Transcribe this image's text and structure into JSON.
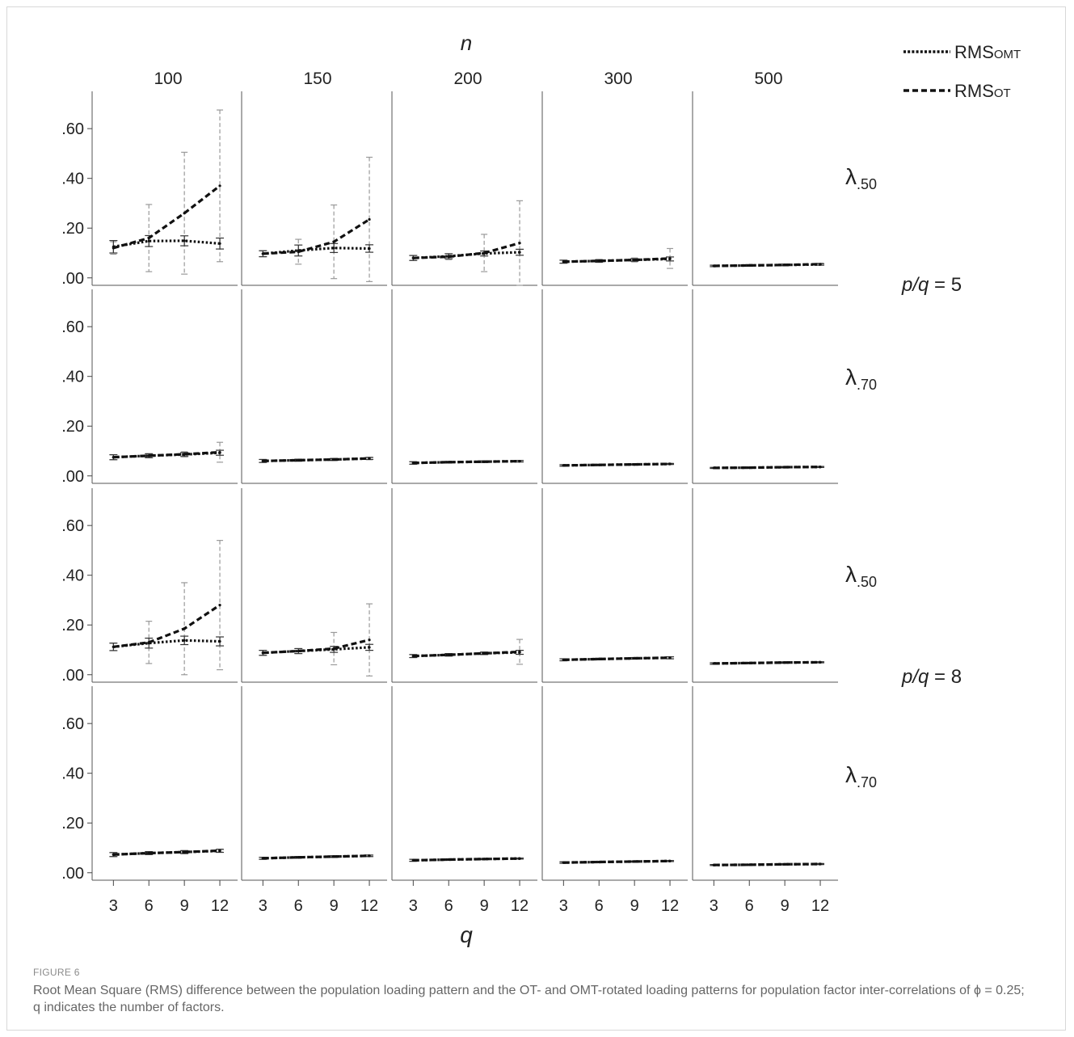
{
  "chart_data": {
    "type": "line",
    "panel_grid": "facet",
    "xlabel": "q",
    "column_header": "n",
    "columns": [
      "100",
      "150",
      "200",
      "300",
      "500"
    ],
    "row_labels": [
      "λ.50",
      "λ.70",
      "λ.50",
      "λ.70"
    ],
    "row_group_labels": [
      "p/q = 5",
      "p/q = 8"
    ],
    "x": [
      3,
      6,
      9,
      12
    ],
    "x_tick_labels": [
      "3",
      "6",
      "9",
      "12"
    ],
    "y_tick_values": [
      0,
      0.2,
      0.4,
      0.6
    ],
    "y_tick_labels": [
      ".00",
      ".20",
      ".40",
      ".60"
    ],
    "ylim": [
      -0.03,
      0.75
    ],
    "legend_position": "top-right",
    "legend": [
      {
        "name": "RMSOMT",
        "style": "dotted"
      },
      {
        "name": "RMSOT",
        "style": "dashed"
      }
    ],
    "panels": [
      [
        {
          "omt": [
            0.125,
            0.148,
            0.149,
            0.138
          ],
          "omt_err": [
            0.025,
            0.022,
            0.02,
            0.022
          ],
          "ot": [
            0.12,
            0.16,
            0.26,
            0.37
          ],
          "ot_err": [
            0.025,
            0.135,
            0.245,
            0.305
          ]
        },
        {
          "omt": [
            0.097,
            0.11,
            0.12,
            0.118
          ],
          "omt_err": [
            0.012,
            0.022,
            0.018,
            0.015
          ],
          "ot": [
            0.097,
            0.105,
            0.145,
            0.235
          ],
          "ot_err": [
            0.012,
            0.05,
            0.148,
            0.25
          ]
        },
        {
          "omt": [
            0.08,
            0.087,
            0.098,
            0.103
          ],
          "omt_err": [
            0.01,
            0.01,
            0.01,
            0.012
          ],
          "ot": [
            0.08,
            0.085,
            0.1,
            0.14
          ],
          "ot_err": [
            0.01,
            0.012,
            0.075,
            0.17
          ]
        },
        {
          "omt": [
            0.065,
            0.068,
            0.072,
            0.076
          ],
          "omt_err": [
            0.006,
            0.005,
            0.005,
            0.008
          ],
          "ot": [
            0.065,
            0.068,
            0.072,
            0.078
          ],
          "ot_err": [
            0.006,
            0.006,
            0.008,
            0.04
          ]
        },
        {
          "omt": [
            0.048,
            0.05,
            0.052,
            0.054
          ],
          "omt_err": [
            0.003,
            0.003,
            0.003,
            0.003
          ],
          "ot": [
            0.048,
            0.05,
            0.052,
            0.055
          ],
          "ot_err": [
            0.003,
            0.003,
            0.003,
            0.004
          ]
        }
      ],
      [
        {
          "omt": [
            0.075,
            0.081,
            0.086,
            0.093
          ],
          "omt_err": [
            0.01,
            0.008,
            0.008,
            0.01
          ],
          "ot": [
            0.075,
            0.081,
            0.087,
            0.095
          ],
          "ot_err": [
            0.01,
            0.008,
            0.01,
            0.04
          ]
        },
        {
          "omt": [
            0.06,
            0.063,
            0.066,
            0.07
          ],
          "omt_err": [
            0.006,
            0.004,
            0.004,
            0.004
          ],
          "ot": [
            0.06,
            0.063,
            0.066,
            0.07
          ],
          "ot_err": [
            0.006,
            0.004,
            0.004,
            0.005
          ]
        },
        {
          "omt": [
            0.052,
            0.055,
            0.057,
            0.059
          ],
          "omt_err": [
            0.005,
            0.003,
            0.003,
            0.003
          ],
          "ot": [
            0.052,
            0.055,
            0.057,
            0.059
          ],
          "ot_err": [
            0.005,
            0.003,
            0.003,
            0.003
          ]
        },
        {
          "omt": [
            0.042,
            0.044,
            0.046,
            0.048
          ],
          "omt_err": [
            0.003,
            0.002,
            0.002,
            0.002
          ],
          "ot": [
            0.042,
            0.044,
            0.046,
            0.048
          ],
          "ot_err": [
            0.003,
            0.002,
            0.002,
            0.002
          ]
        },
        {
          "omt": [
            0.032,
            0.033,
            0.035,
            0.036
          ],
          "omt_err": [
            0.002,
            0.002,
            0.002,
            0.002
          ],
          "ot": [
            0.032,
            0.033,
            0.035,
            0.036
          ],
          "ot_err": [
            0.002,
            0.002,
            0.002,
            0.002
          ]
        }
      ],
      [
        {
          "omt": [
            0.112,
            0.127,
            0.138,
            0.134
          ],
          "omt_err": [
            0.015,
            0.02,
            0.017,
            0.018
          ],
          "ot": [
            0.112,
            0.13,
            0.185,
            0.28
          ],
          "ot_err": [
            0.015,
            0.085,
            0.185,
            0.26
          ]
        },
        {
          "omt": [
            0.088,
            0.095,
            0.102,
            0.11
          ],
          "omt_err": [
            0.01,
            0.01,
            0.012,
            0.012
          ],
          "ot": [
            0.088,
            0.095,
            0.105,
            0.14
          ],
          "ot_err": [
            0.01,
            0.01,
            0.065,
            0.145
          ]
        },
        {
          "omt": [
            0.075,
            0.08,
            0.086,
            0.09
          ],
          "omt_err": [
            0.006,
            0.005,
            0.005,
            0.008
          ],
          "ot": [
            0.075,
            0.08,
            0.086,
            0.092
          ],
          "ot_err": [
            0.006,
            0.005,
            0.005,
            0.05
          ]
        },
        {
          "omt": [
            0.06,
            0.063,
            0.066,
            0.068
          ],
          "omt_err": [
            0.004,
            0.003,
            0.003,
            0.004
          ],
          "ot": [
            0.06,
            0.063,
            0.066,
            0.068
          ],
          "ot_err": [
            0.004,
            0.003,
            0.003,
            0.004
          ]
        },
        {
          "omt": [
            0.045,
            0.047,
            0.049,
            0.05
          ],
          "omt_err": [
            0.003,
            0.002,
            0.002,
            0.002
          ],
          "ot": [
            0.045,
            0.047,
            0.049,
            0.05
          ],
          "ot_err": [
            0.003,
            0.002,
            0.002,
            0.002
          ]
        }
      ],
      [
        {
          "omt": [
            0.073,
            0.079,
            0.083,
            0.088
          ],
          "omt_err": [
            0.008,
            0.006,
            0.006,
            0.006
          ],
          "ot": [
            0.073,
            0.079,
            0.083,
            0.089
          ],
          "ot_err": [
            0.008,
            0.006,
            0.006,
            0.006
          ]
        },
        {
          "omt": [
            0.058,
            0.062,
            0.065,
            0.068
          ],
          "omt_err": [
            0.004,
            0.003,
            0.003,
            0.003
          ],
          "ot": [
            0.058,
            0.062,
            0.065,
            0.068
          ],
          "ot_err": [
            0.004,
            0.003,
            0.003,
            0.003
          ]
        },
        {
          "omt": [
            0.05,
            0.053,
            0.055,
            0.057
          ],
          "omt_err": [
            0.004,
            0.002,
            0.002,
            0.002
          ],
          "ot": [
            0.05,
            0.053,
            0.055,
            0.057
          ],
          "ot_err": [
            0.004,
            0.002,
            0.002,
            0.002
          ]
        },
        {
          "omt": [
            0.041,
            0.043,
            0.045,
            0.047
          ],
          "omt_err": [
            0.003,
            0.002,
            0.002,
            0.002
          ],
          "ot": [
            0.041,
            0.043,
            0.045,
            0.047
          ],
          "ot_err": [
            0.003,
            0.002,
            0.002,
            0.002
          ]
        },
        {
          "omt": [
            0.031,
            0.032,
            0.034,
            0.035
          ],
          "omt_err": [
            0.002,
            0.002,
            0.002,
            0.002
          ],
          "ot": [
            0.031,
            0.032,
            0.034,
            0.035
          ],
          "ot_err": [
            0.002,
            0.002,
            0.002,
            0.002
          ]
        }
      ]
    ]
  },
  "caption": {
    "label": "FIGURE 6",
    "text": "Root Mean Square (RMS) difference between the population loading pattern and the OT- and OMT-rotated loading patterns for population factor inter-correlations of ϕ = 0.25; q indicates the number of factors."
  }
}
